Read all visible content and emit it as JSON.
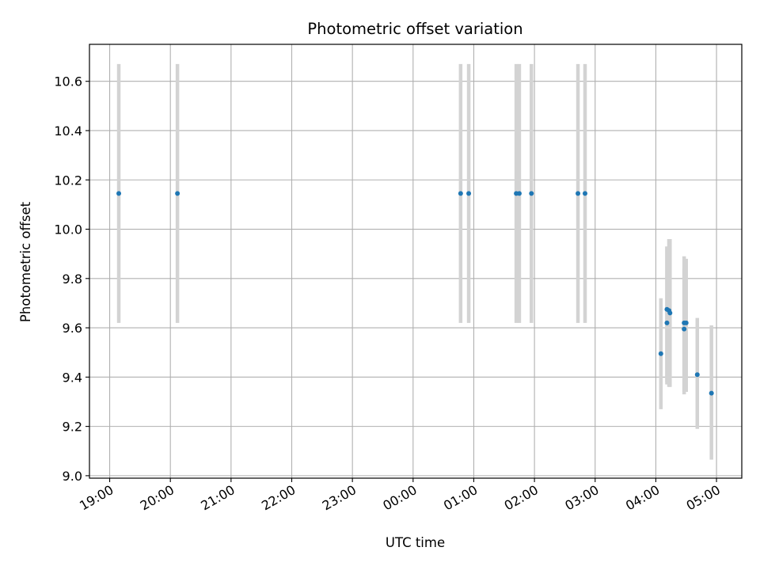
{
  "chart_data": {
    "type": "scatter",
    "title": "Photometric offset variation",
    "xlabel": "UTC time",
    "ylabel": "Photometric offset",
    "x_axis_type": "time",
    "xlim": [
      "18:40",
      "05:25"
    ],
    "ylim": [
      8.99,
      10.75
    ],
    "grid": true,
    "x_ticks": [
      "19:00",
      "20:00",
      "21:00",
      "22:00",
      "23:00",
      "00:00",
      "01:00",
      "02:00",
      "03:00",
      "04:00",
      "05:00"
    ],
    "y_ticks": [
      "9.0",
      "9.2",
      "9.4",
      "9.6",
      "9.8",
      "10.0",
      "10.2",
      "10.4",
      "10.6"
    ],
    "series": [
      {
        "marker_color": "#1f77b4",
        "errorbar_color": "#d3d3d3",
        "points": [
          {
            "x": "19:09",
            "y": 10.145,
            "ylow": 9.62,
            "yhigh": 10.67
          },
          {
            "x": "20:07",
            "y": 10.145,
            "ylow": 9.62,
            "yhigh": 10.67
          },
          {
            "x": "00:47",
            "y": 10.145,
            "ylow": 9.62,
            "yhigh": 10.67
          },
          {
            "x": "00:55",
            "y": 10.145,
            "ylow": 9.62,
            "yhigh": 10.67
          },
          {
            "x": "01:42",
            "y": 10.145,
            "ylow": 9.62,
            "yhigh": 10.67
          },
          {
            "x": "01:45",
            "y": 10.145,
            "ylow": 9.62,
            "yhigh": 10.67
          },
          {
            "x": "01:57",
            "y": 10.145,
            "ylow": 9.62,
            "yhigh": 10.67
          },
          {
            "x": "02:43",
            "y": 10.145,
            "ylow": 9.62,
            "yhigh": 10.67
          },
          {
            "x": "02:50",
            "y": 10.145,
            "ylow": 9.62,
            "yhigh": 10.67
          },
          {
            "x": "04:05",
            "y": 9.495,
            "ylow": 9.27,
            "yhigh": 9.72
          },
          {
            "x": "04:11",
            "y": 9.62,
            "ylow": 9.37,
            "yhigh": 9.93
          },
          {
            "x": "04:11",
            "y": 9.675,
            "ylow": 9.38,
            "yhigh": 9.93
          },
          {
            "x": "04:13",
            "y": 9.67,
            "ylow": 9.36,
            "yhigh": 9.96
          },
          {
            "x": "04:14",
            "y": 9.66,
            "ylow": 9.36,
            "yhigh": 9.96
          },
          {
            "x": "04:28",
            "y": 9.62,
            "ylow": 9.33,
            "yhigh": 9.84
          },
          {
            "x": "04:28",
            "y": 9.595,
            "ylow": 9.34,
            "yhigh": 9.89
          },
          {
            "x": "04:30",
            "y": 9.62,
            "ylow": 9.34,
            "yhigh": 9.88
          },
          {
            "x": "04:41",
            "y": 9.41,
            "ylow": 9.19,
            "yhigh": 9.64
          },
          {
            "x": "04:55",
            "y": 9.335,
            "ylow": 9.065,
            "yhigh": 9.61
          }
        ]
      }
    ]
  }
}
